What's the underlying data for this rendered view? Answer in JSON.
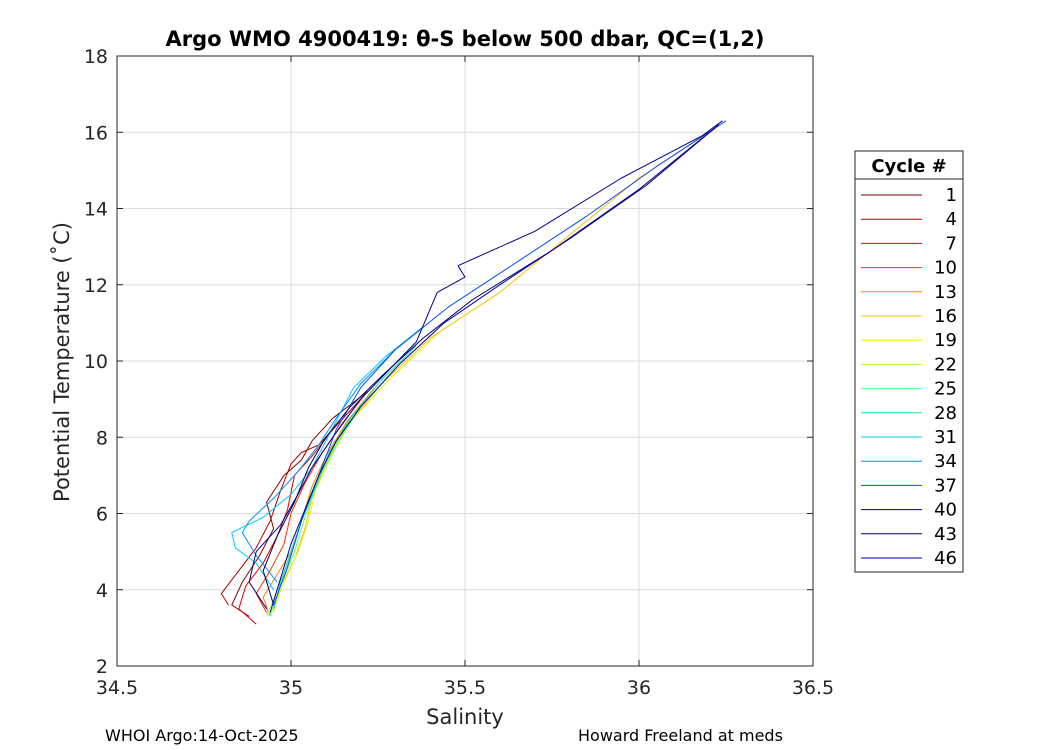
{
  "chart_data": {
    "type": "line",
    "title": "Argo WMO 4900419: θ-S below 500 dbar,  QC=(1,2)",
    "xlabel": "Salinity",
    "ylabel": "Potential Temperature (˚C)",
    "xlim": [
      34.5,
      36.5
    ],
    "ylim": [
      2,
      18
    ],
    "xticks": [
      34.5,
      35,
      35.5,
      36,
      36.5
    ],
    "xtick_labels": [
      "34.5",
      "35",
      "35.5",
      "36",
      "36.5"
    ],
    "yticks": [
      2,
      4,
      6,
      8,
      10,
      12,
      14,
      16,
      18
    ],
    "ytick_labels": [
      "2",
      "4",
      "6",
      "8",
      "10",
      "12",
      "14",
      "16",
      "18"
    ],
    "grid": true,
    "legend": {
      "title": "Cycle #",
      "placement": "outside-right",
      "entries": [
        {
          "label": "1",
          "color": "#800000"
        },
        {
          "label": "4",
          "color": "#b00000"
        },
        {
          "label": "7",
          "color": "#e00000"
        },
        {
          "label": "10",
          "color": "#ff3000"
        },
        {
          "label": "13",
          "color": "#ff8000"
        },
        {
          "label": "16",
          "color": "#ffc000"
        },
        {
          "label": "19",
          "color": "#e8f000"
        },
        {
          "label": "22",
          "color": "#a8ff40"
        },
        {
          "label": "25",
          "color": "#50ff80"
        },
        {
          "label": "28",
          "color": "#10e0b0"
        },
        {
          "label": "31",
          "color": "#00c8ff"
        },
        {
          "label": "34",
          "color": "#0090ff"
        },
        {
          "label": "37",
          "color": "#0050ff"
        },
        {
          "label": "40",
          "color": "#000090"
        },
        {
          "label": "43",
          "color": "#000060"
        },
        {
          "label": "46",
          "color": "#0000b0"
        }
      ]
    },
    "series": [
      {
        "label": "1",
        "color": "#800000",
        "x": [
          34.88,
          34.83,
          34.86,
          34.91,
          34.95,
          34.93,
          34.98,
          35.03,
          35.06,
          35.12,
          35.22
        ],
        "y": [
          3.3,
          3.6,
          4.2,
          4.9,
          5.6,
          6.3,
          7.0,
          7.4,
          7.9,
          8.5,
          9.2
        ]
      },
      {
        "label": "4",
        "color": "#b00000",
        "x": [
          34.82,
          34.8,
          34.85,
          34.9,
          34.94,
          34.97,
          35.0,
          35.03,
          35.08,
          35.14,
          35.22
        ],
        "y": [
          3.6,
          3.9,
          4.5,
          5.1,
          5.8,
          6.6,
          7.3,
          7.6,
          7.8,
          8.4,
          9.2
        ]
      },
      {
        "label": "7",
        "color": "#e00000",
        "x": [
          34.9,
          34.85,
          34.87,
          34.92,
          34.96,
          34.99,
          35.01,
          35.06,
          35.12,
          35.2
        ],
        "y": [
          3.1,
          3.5,
          4.1,
          4.7,
          5.4,
          6.1,
          7.0,
          7.5,
          8.2,
          9.0
        ]
      },
      {
        "label": "10",
        "color": "#ff3000",
        "x": [
          34.93,
          34.9,
          34.94,
          34.98,
          35.0,
          35.04,
          35.09,
          35.15,
          35.22
        ],
        "y": [
          3.4,
          3.9,
          4.5,
          5.2,
          6.0,
          6.8,
          7.6,
          8.4,
          9.2
        ]
      },
      {
        "label": "13",
        "color": "#ff8000",
        "x": [
          34.94,
          34.92,
          34.96,
          35.0,
          35.03,
          35.06,
          35.1,
          35.16,
          35.24
        ],
        "y": [
          3.3,
          3.8,
          4.4,
          5.0,
          5.8,
          6.7,
          7.5,
          8.4,
          9.3
        ]
      },
      {
        "label": "16",
        "color": "#ffc000",
        "x": [
          34.95,
          34.97,
          35.01,
          35.04,
          35.06,
          35.1,
          35.16,
          35.26,
          35.4,
          35.6,
          35.8,
          36.0,
          36.22
        ],
        "y": [
          3.4,
          4.1,
          4.8,
          5.6,
          6.4,
          7.3,
          8.3,
          9.4,
          10.6,
          11.8,
          13.3,
          14.8,
          16.1
        ]
      },
      {
        "label": "19",
        "color": "#e8f000",
        "x": [
          34.95,
          34.98,
          35.02,
          35.05,
          35.07,
          35.11,
          35.17,
          35.28,
          35.42
        ],
        "y": [
          3.5,
          4.2,
          5.0,
          5.8,
          6.6,
          7.4,
          8.4,
          9.5,
          10.7
        ]
      },
      {
        "label": "22",
        "color": "#a8ff40",
        "x": [
          34.93,
          34.96,
          35.0,
          35.03,
          35.07,
          35.12,
          35.18,
          35.28
        ],
        "y": [
          3.3,
          4.0,
          4.9,
          5.8,
          6.8,
          7.7,
          8.6,
          9.6
        ]
      },
      {
        "label": "25",
        "color": "#50ff80",
        "x": [
          34.94,
          34.97,
          35.01,
          35.04,
          35.08,
          35.13,
          35.2,
          35.3
        ],
        "y": [
          3.3,
          4.1,
          5.0,
          5.9,
          6.9,
          7.8,
          8.8,
          9.8
        ]
      },
      {
        "label": "28",
        "color": "#10e0b0",
        "x": [
          34.95,
          34.97,
          35.0,
          35.03,
          35.07,
          35.11,
          35.17,
          35.26,
          35.36
        ],
        "y": [
          3.5,
          4.2,
          5.0,
          5.8,
          6.7,
          7.6,
          8.5,
          9.5,
          10.4
        ]
      },
      {
        "label": "31",
        "color": "#00c8ff",
        "x": [
          34.95,
          34.9,
          34.84,
          34.83,
          34.92,
          35.0,
          35.06,
          35.1,
          35.14,
          35.18,
          35.27,
          35.38
        ],
        "y": [
          4.0,
          4.7,
          5.1,
          5.5,
          5.9,
          6.5,
          7.2,
          7.9,
          8.6,
          9.3,
          10.1,
          10.9
        ]
      },
      {
        "label": "34",
        "color": "#0090ff",
        "x": [
          34.96,
          34.9,
          34.86,
          34.88,
          34.95,
          35.02,
          35.08,
          35.13,
          35.2,
          35.3
        ],
        "y": [
          4.2,
          4.9,
          5.5,
          5.8,
          6.4,
          7.1,
          7.8,
          8.5,
          9.4,
          10.3
        ]
      },
      {
        "label": "37",
        "color": "#0050ff",
        "x": [
          34.95,
          34.99,
          35.03,
          35.08,
          35.13,
          35.2,
          35.3,
          35.45,
          35.65,
          35.85,
          36.05,
          36.25
        ],
        "y": [
          3.6,
          4.6,
          5.8,
          7.0,
          8.2,
          9.3,
          10.3,
          11.4,
          12.6,
          13.8,
          15.1,
          16.3
        ]
      },
      {
        "label": "40",
        "color": "#000090",
        "x": [
          34.93,
          34.88,
          34.9,
          34.97,
          35.02,
          35.06,
          35.12,
          35.2,
          35.36,
          35.42,
          35.5,
          35.48,
          35.7,
          35.95,
          36.18,
          36.24
        ],
        "y": [
          3.5,
          4.2,
          5.0,
          5.7,
          6.5,
          7.2,
          8.0,
          9.0,
          10.5,
          11.8,
          12.2,
          12.5,
          13.4,
          14.8,
          15.9,
          16.3
        ]
      },
      {
        "label": "43",
        "color": "#000060",
        "x": [
          34.95,
          34.92,
          34.96,
          35.01,
          35.05,
          35.1,
          35.17,
          35.26,
          35.38,
          35.52,
          35.75,
          36.0,
          36.23
        ],
        "y": [
          3.6,
          4.5,
          5.4,
          6.3,
          7.2,
          8.0,
          8.8,
          9.6,
          10.6,
          11.6,
          12.9,
          14.5,
          16.2
        ]
      },
      {
        "label": "46",
        "color": "#0000b0",
        "x": [
          34.94,
          34.97,
          35.0,
          35.04,
          35.08,
          35.13,
          35.2,
          35.31,
          35.44,
          35.6,
          35.8,
          36.02,
          36.23
        ],
        "y": [
          3.4,
          4.3,
          5.2,
          6.1,
          7.0,
          7.9,
          8.8,
          9.9,
          11.0,
          12.0,
          13.2,
          14.6,
          16.2
        ]
      }
    ]
  },
  "footer": {
    "left": "WHOI Argo:14-Oct-2025",
    "right": "Howard Freeland at meds"
  }
}
